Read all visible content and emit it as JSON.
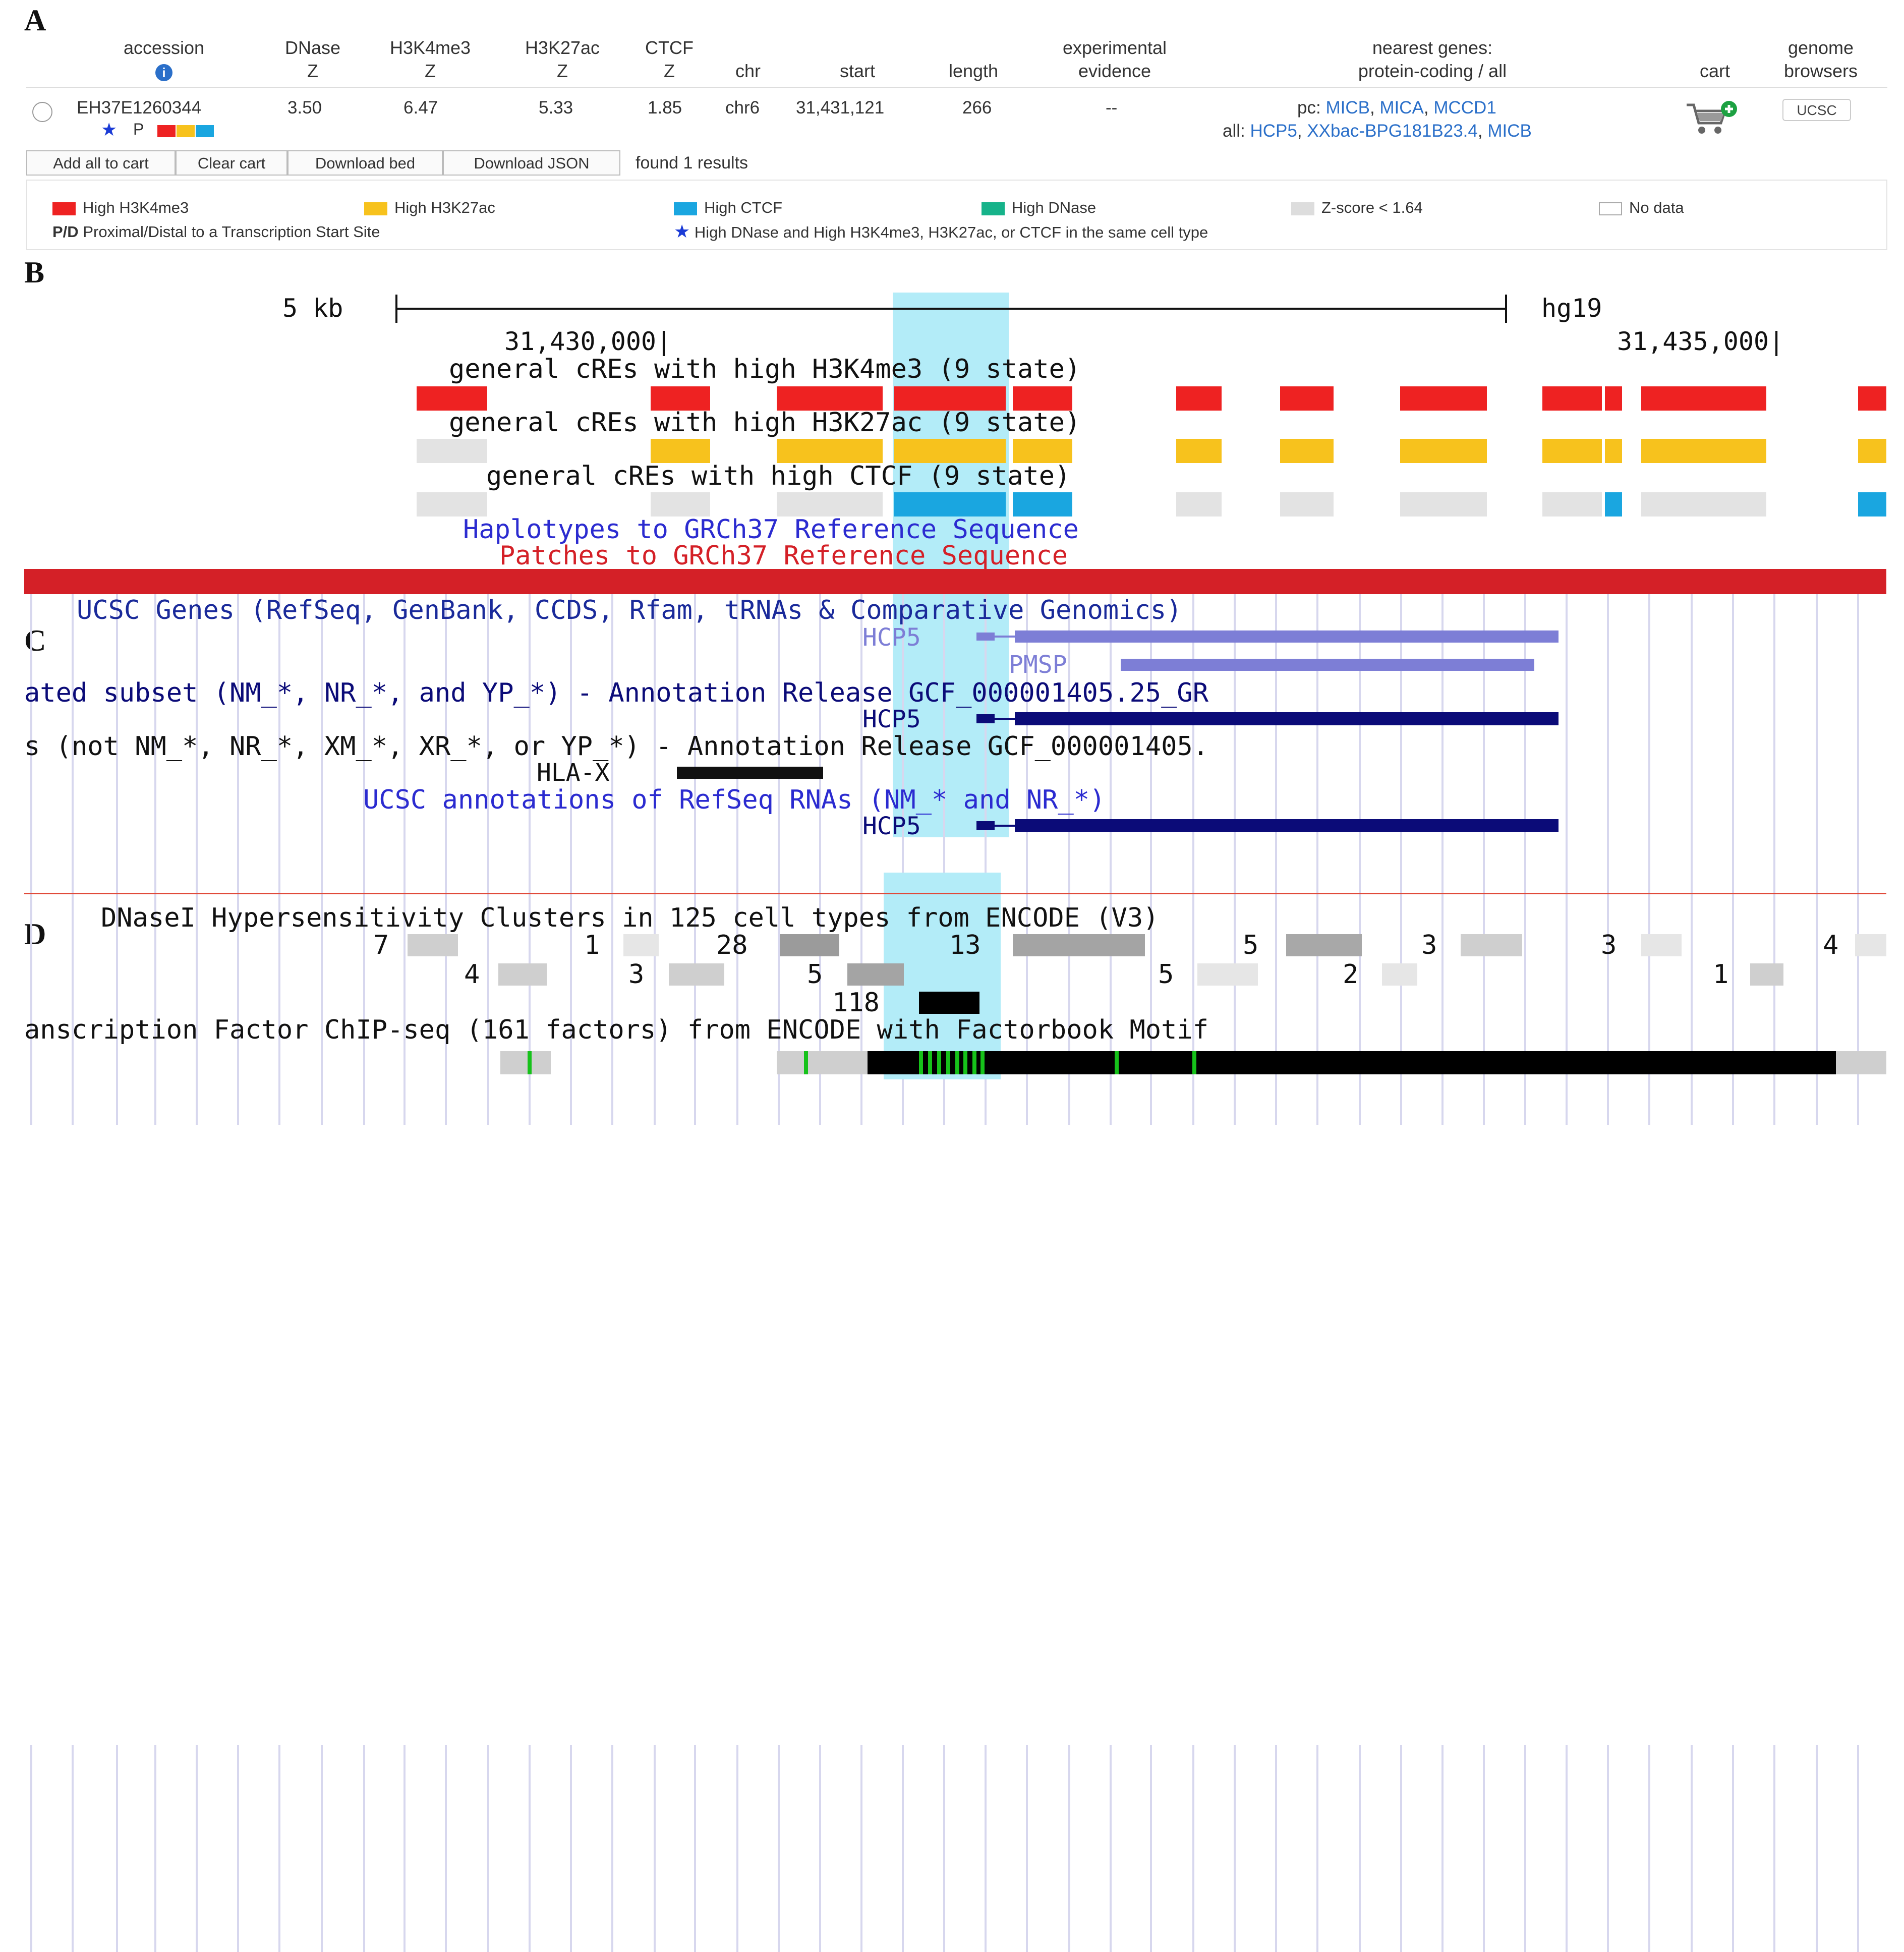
{
  "panels": {
    "a": "A",
    "b": "B",
    "c": "C",
    "d": "D"
  },
  "panel_a": {
    "headers": {
      "accession": "accession",
      "dnase": [
        "DNase",
        "Z"
      ],
      "h3k4me3": [
        "H3K4me3",
        "Z"
      ],
      "h3k27ac": [
        "H3K27ac",
        "Z"
      ],
      "ctcf": [
        "CTCF",
        "Z"
      ],
      "chr": "chr",
      "start": "start",
      "length": "length",
      "evidence": [
        "experimental",
        "evidence"
      ],
      "genes": [
        "nearest genes:",
        "protein-coding / all"
      ],
      "cart": "cart",
      "browsers": [
        "genome",
        "browsers"
      ]
    },
    "info_icon": "i",
    "row": {
      "accession": "EH37E1260344",
      "star": "★",
      "pd": "P",
      "dnase": "3.50",
      "h3k4me3": "6.47",
      "h3k27ac": "5.33",
      "ctcf": "1.85",
      "chr": "chr6",
      "start": "31,431,121",
      "length": "266",
      "evidence": "--",
      "pc_label": "pc:",
      "pc_genes": [
        "MICB",
        "MICA",
        "MCCD1"
      ],
      "all_label": "all:",
      "all_genes": [
        "HCP5",
        "XXbac-BPG181B23.4",
        "MICB"
      ],
      "browser": "UCSC"
    },
    "buttons": [
      "Add all to cart",
      "Clear cart",
      "Download bed",
      "Download JSON"
    ],
    "found": "found 1 results",
    "legend": [
      {
        "label": "High H3K4me3",
        "color": "#ee2222"
      },
      {
        "label": "High H3K27ac",
        "color": "#f7c21d"
      },
      {
        "label": "High CTCF",
        "color": "#1aa6e0"
      },
      {
        "label": "High DNase",
        "color": "#16b38a"
      },
      {
        "label": "Z-score < 1.64",
        "color": "#dddddd"
      },
      {
        "label": "No data",
        "color": "#ffffff"
      }
    ],
    "pd_abbr": "P/D",
    "pd_desc": "Proximal/Distal to a Transcription Start Site",
    "star_desc": "High DNase and High H3K4me3, H3K27ac, or CTCF in the same cell type"
  },
  "panel_b": {
    "scale_label": "5 kb",
    "assembly": "hg19",
    "pos_left": "31,430,000|",
    "pos_right": "31,435,000|",
    "track_h3k4me3": "general cREs with high H3K4me3 (9 state)",
    "track_h3k27ac": "general cREs with high H3K27ac (9 state)",
    "track_ctcf": "general cREs with high CTCF (9 state)",
    "haplotypes": "Haplotypes to GRCh37 Reference Sequence",
    "patches": "Patches to GRCh37 Reference Sequence"
  },
  "panel_c": {
    "ucsc_genes": "UCSC Genes (RefSeq, GenBank, CCDS, Rfam, tRNAs & Comparative Genomics)",
    "gene_hcp5": "HCP5",
    "gene_pmsp": "PMSP",
    "curated": "ated subset (NM_*, NR_*, and YP_*) - Annotation Release GCF_000001405.25_GR",
    "predicted": "s (not NM_*, NR_*, XM_*, XR_*, or YP_*) - Annotation Release GCF_000001405.",
    "gene_hlax": "HLA-X",
    "refseq_rnas": "UCSC annotations of RefSeq RNAs (NM_* and NR_*)"
  },
  "panel_d": {
    "dnase_title": "DNaseI Hypersensitivity Clusters in 125 cell types from ENCODE (V3)",
    "counts": [
      "7",
      "1",
      "28",
      "13",
      "5",
      "3",
      "3",
      "4",
      "4",
      "3",
      "5",
      "5",
      "2",
      "1",
      "118"
    ],
    "tf_title": "anscription Factor ChIP-seq (161 factors) from ENCODE with Factorbook Motif"
  },
  "colors": {
    "red": "#ee2222",
    "orange": "#f7c21d",
    "blue": "#1aa6e0",
    "navy": "#0b0b78",
    "lightblue": "#7d7ed6",
    "highlight": "#b3ecf8",
    "patch_red": "#d42027"
  }
}
